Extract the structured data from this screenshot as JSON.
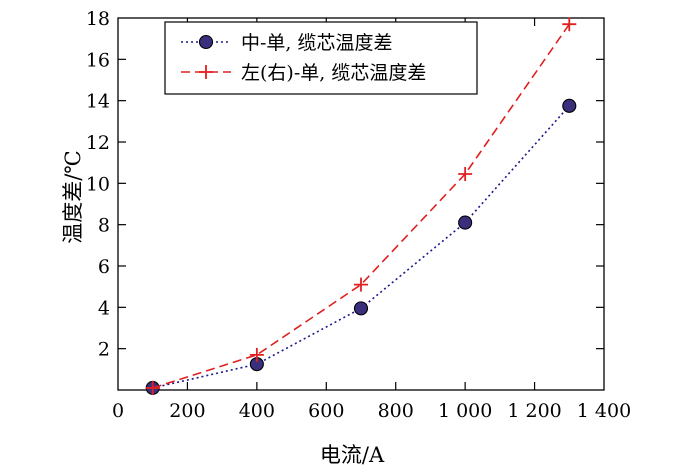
{
  "chart_data": {
    "type": "line",
    "title": "",
    "xlabel": "电流/A",
    "ylabel": "温度差/℃",
    "xlim": [
      0,
      1400
    ],
    "ylim": [
      0,
      18
    ],
    "x_ticks": [
      0,
      200,
      400,
      600,
      800,
      1000,
      1200,
      1400
    ],
    "x_tick_labels": [
      "0",
      "200",
      "400",
      "600",
      "800",
      "1 000",
      "1 200",
      "1 400"
    ],
    "y_ticks": [
      2,
      4,
      6,
      8,
      10,
      12,
      14,
      16,
      18
    ],
    "y_tick_labels": [
      "2",
      "4",
      "6",
      "8",
      "10",
      "12",
      "14",
      "16",
      "18"
    ],
    "grid": false,
    "legend_position": "top-left",
    "series": [
      {
        "name": "中-单, 缆芯温度差",
        "color": "#1a1a8a",
        "marker_fill": "#3a2f7d",
        "line_style": "dotted",
        "marker": "circle",
        "x": [
          100,
          400,
          700,
          1000,
          1300
        ],
        "y": [
          0.1,
          1.25,
          3.95,
          8.1,
          13.75
        ]
      },
      {
        "name": "左(右)-单, 缆芯温度差",
        "color": "#e02020",
        "line_style": "dashed",
        "marker": "plus",
        "x": [
          100,
          400,
          700,
          1000,
          1300
        ],
        "y": [
          0.1,
          1.7,
          5.1,
          10.45,
          17.7
        ]
      }
    ]
  }
}
